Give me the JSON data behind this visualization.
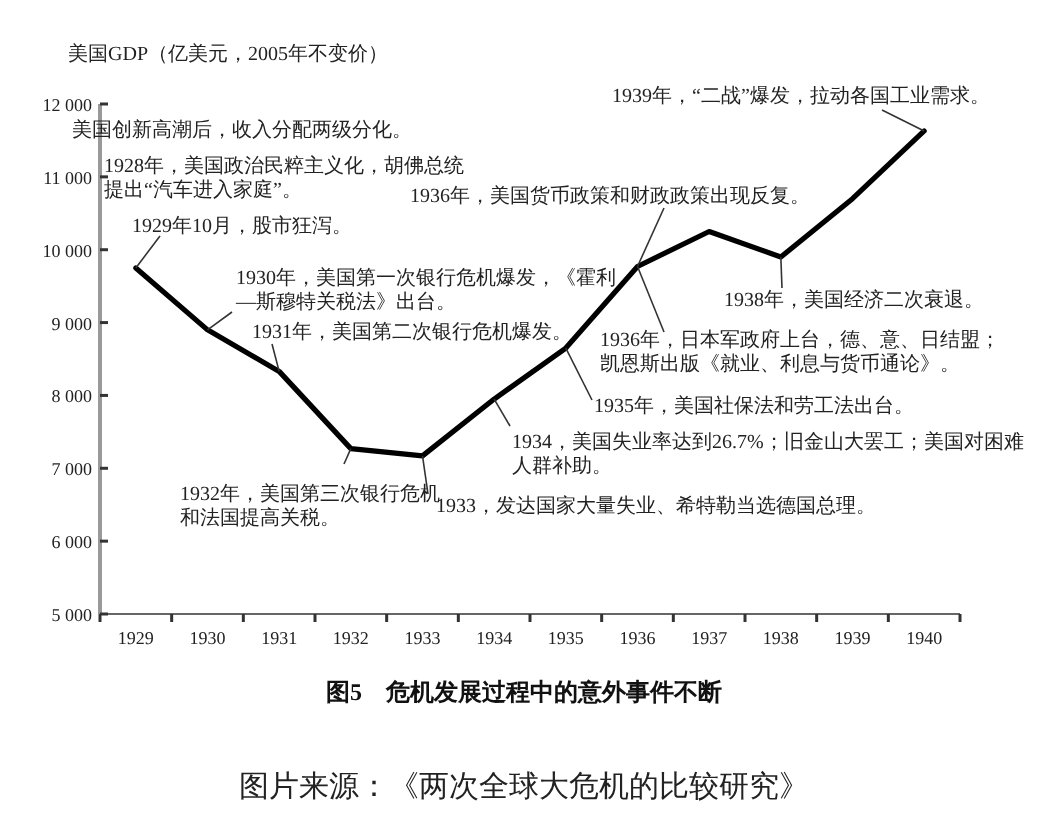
{
  "chart_data": {
    "type": "line",
    "title": "图5　危机发展过程中的意外事件不断",
    "ylabel": "美国GDP（亿美元，2005年不变价）",
    "categories": [
      "1929",
      "1930",
      "1931",
      "1932",
      "1933",
      "1934",
      "1935",
      "1936",
      "1937",
      "1938",
      "1939",
      "1940"
    ],
    "series": [
      {
        "color": "#000000",
        "values": [
          9750,
          8900,
          8330,
          7270,
          7170,
          7950,
          8650,
          9770,
          10250,
          9900,
          10700,
          11630
        ]
      }
    ],
    "ylim": [
      5000,
      12000
    ],
    "yticks": [
      {
        "value": 5000,
        "label": "5 000"
      },
      {
        "value": 6000,
        "label": "6 000"
      },
      {
        "value": 7000,
        "label": "7 000"
      },
      {
        "value": 8000,
        "label": "8 000"
      },
      {
        "value": 9000,
        "label": "9 000"
      },
      {
        "value": 10000,
        "label": "10 000"
      },
      {
        "value": 11000,
        "label": "11 000"
      },
      {
        "value": 12000,
        "label": "12 000"
      }
    ],
    "grid": false,
    "marker": "none",
    "line_style": "solid",
    "annotations": [
      "美国创新高潮后，收入分配两级分化。",
      "1928年，美国政治民粹主义化，胡佛总统提出“汽车进入家庭”。",
      {
        "text": "1929年10月，股市狂泻。",
        "x": "1929",
        "y": 9750
      },
      {
        "text": "1930年，美国第一次银行危机爆发，《霍利—斯穆特关税法》出台。",
        "x": "1930",
        "y": 8900
      },
      {
        "text": "1931年，美国第二次银行危机爆发。",
        "x": "1931",
        "y": 8330
      },
      {
        "text": "1932年，美国第三次银行危机和法国提高关税。",
        "x": "1932",
        "y": 7270
      },
      {
        "text": "1933，发达国家大量失业、希特勒当选德国总理。",
        "x": "1933",
        "y": 7170
      },
      {
        "text": "1934，美国失业率达到26.7%；旧金山大罢工；美国对困难人群补助。",
        "x": "1934",
        "y": 7950
      },
      {
        "text": "1935年，美国社保法和劳工法出台。",
        "x": "1935",
        "y": 8650
      },
      {
        "text": "1936年，日本军政府上台，德、意、日结盟；凯恩斯出版《就业、利息与货币通论》。",
        "x": "1936",
        "y": 9770
      },
      {
        "text": "1936年，美国货币政策和财政政策出现反复。",
        "x": "1936",
        "y": 9770
      },
      {
        "text": "1938年，美国经济二次衰退。",
        "x": "1938",
        "y": 9900
      },
      {
        "text": "1939年，“二战”爆发，拉动各国工业需求。",
        "x": "1940",
        "y": 11630
      },
      "图片来源：《两次全球大危机的比较研究》"
    ]
  }
}
